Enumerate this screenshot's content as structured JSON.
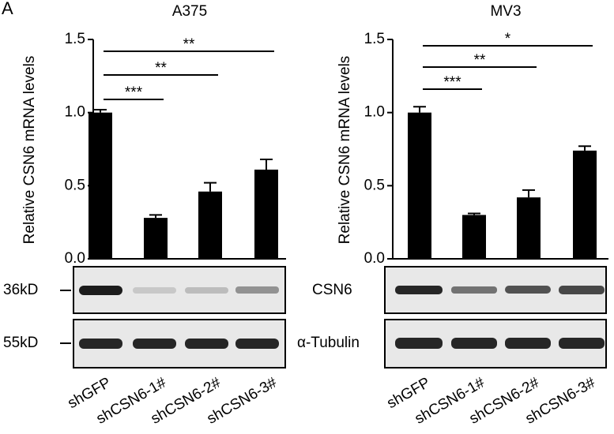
{
  "panel_label": "A",
  "blot_labels": {
    "marker_top": "36kD",
    "marker_bottom": "55kD",
    "protein_top": "CSN6",
    "protein_bottom": "α-Tubulin"
  },
  "chart_data": [
    {
      "type": "bar",
      "title": "A375",
      "y_label": "Relative CSN6 mRNA levels",
      "categories": [
        "shGFP",
        "shCSN6-1#",
        "shCSN6-2#",
        "shCSN6-3#"
      ],
      "values": [
        1.0,
        0.28,
        0.46,
        0.61
      ],
      "errors": [
        0.02,
        0.02,
        0.06,
        0.07
      ],
      "color": "#000000",
      "ylim": [
        0,
        1.5
      ],
      "yticks": [
        {
          "value": 0,
          "label": "0.0"
        },
        {
          "value": 0.5,
          "label": "0.5"
        },
        {
          "value": 1,
          "label": "1.0"
        },
        {
          "value": 1.5,
          "label": "1.5"
        }
      ],
      "annotations": [
        "***",
        "**",
        "**"
      ]
    },
    {
      "type": "bar",
      "title": "MV3",
      "y_label": "Relative CSN6 mRNA levels",
      "categories": [
        "shGFP",
        "shCSN6-1#",
        "shCSN6-2#",
        "shCSN6-3#"
      ],
      "values": [
        1.0,
        0.3,
        0.42,
        0.74
      ],
      "errors": [
        0.04,
        0.01,
        0.05,
        0.03
      ],
      "color": "#000000",
      "ylim": [
        0,
        1.5
      ],
      "yticks": [
        {
          "value": 0,
          "label": "0.0"
        },
        {
          "value": 0.5,
          "label": "0.5"
        },
        {
          "value": 1,
          "label": "1.0"
        },
        {
          "value": 1.5,
          "label": "1.5"
        }
      ],
      "annotations": [
        "***",
        "**",
        "*"
      ]
    }
  ]
}
